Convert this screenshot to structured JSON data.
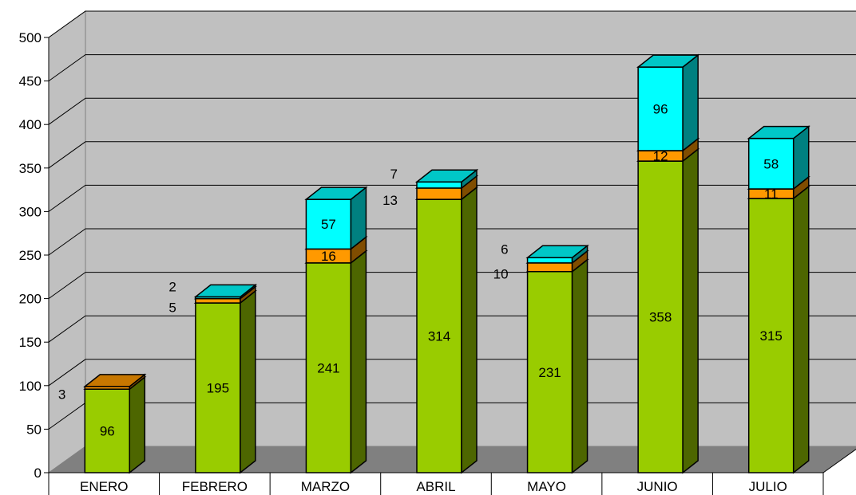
{
  "chart_data": {
    "type": "bar",
    "stacked": true,
    "three_d": true,
    "title": "",
    "xlabel": "",
    "ylabel": "",
    "ylim": [
      0,
      500
    ],
    "y_ticks": [
      0,
      50,
      100,
      150,
      200,
      250,
      300,
      350,
      400,
      450,
      500
    ],
    "y_tick_labels": [
      "0",
      "50",
      "100",
      "150",
      "200",
      "250",
      "300",
      "350",
      "400",
      "450",
      "500"
    ],
    "grid": true,
    "legend": "none",
    "categories": [
      "ENERO",
      "FEBRERO",
      "MARZO",
      "ABRIL",
      "MAYO",
      "JUNIO",
      "JULIO"
    ],
    "series": [
      {
        "color": "#99CC00",
        "values": [
          96,
          195,
          241,
          314,
          231,
          358,
          315
        ],
        "labels": [
          "96",
          "195",
          "241",
          "314",
          "231",
          "358",
          "315"
        ]
      },
      {
        "color": "#FF9900",
        "values": [
          3,
          5,
          16,
          13,
          10,
          12,
          11
        ],
        "labels": [
          "3",
          "5",
          "16",
          "13",
          "10",
          "12",
          "11"
        ]
      },
      {
        "color": "#00FFFF",
        "values": [
          0,
          2,
          57,
          7,
          6,
          96,
          58
        ],
        "labels": [
          "",
          "2",
          "57",
          "7",
          "6",
          "96",
          "58"
        ]
      }
    ],
    "colors": {
      "wall": "#C0C0C0",
      "floor": "#808080",
      "gridline": "#000000"
    }
  }
}
